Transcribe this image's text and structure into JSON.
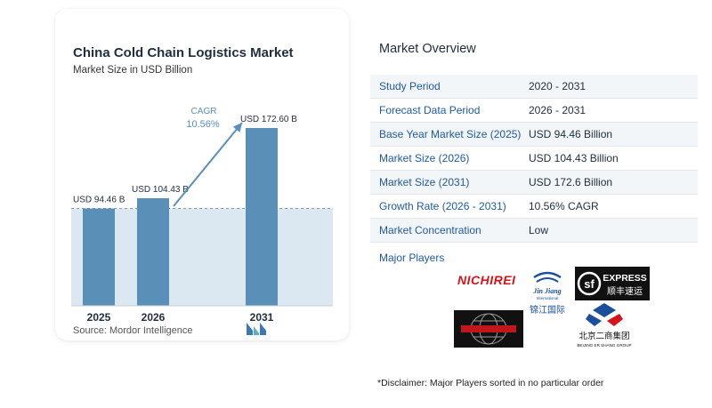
{
  "chart_data": {
    "type": "bar",
    "title": "China Cold Chain Logistics Market",
    "subtitle": "Market Size in USD Billion",
    "categories": [
      "2025",
      "2026",
      "2031"
    ],
    "values": [
      94.46,
      104.43,
      172.6
    ],
    "value_labels": [
      "USD 94.46 B",
      "USD 104.43 B",
      "USD 172.60 B"
    ],
    "cagr_label": "CAGR",
    "cagr_value": "10.56%",
    "ylim": [
      0,
      180
    ],
    "grid": false,
    "colors": {
      "bar": "#5a8fb8",
      "bar_top": "#6a9fc6",
      "shade": "#dbe7f1",
      "arrow": "#5b8fbf",
      "dash": "#8a9aa8"
    }
  },
  "source": "Source:  Mordor Intelligence",
  "overview": {
    "title": "Market Overview",
    "rows": [
      {
        "label": "Study Period",
        "value": "2020 - 2031"
      },
      {
        "label": "Forecast Data Period",
        "value": "2026 - 2031"
      },
      {
        "label": "Base Year Market Size (2025)",
        "value": "USD 94.46 Billion"
      },
      {
        "label": "Market Size (2026)",
        "value": "USD 104.43 Billion"
      },
      {
        "label": "Market Size (2031)",
        "value": "USD 172.6 Billion"
      },
      {
        "label": "Growth Rate (2026 - 2031)",
        "value": "10.56% CAGR"
      },
      {
        "label": "Market Concentration",
        "value": "Low"
      }
    ]
  },
  "major_players": {
    "title": "Major Players",
    "logos": [
      {
        "name": "nichirei-logo",
        "text": "NICHIREI"
      },
      {
        "name": "jinjiang-logo",
        "text": "Jin Jiang",
        "subtext": "International",
        "cn": "锦江国际"
      },
      {
        "name": "sf-express-logo",
        "text": "EXPRESS",
        "cn": "顺丰速运"
      },
      {
        "name": "globe-logo",
        "text": ""
      },
      {
        "name": "beijing-ershang-logo",
        "cn": "北京二商集团",
        "text": "BEIJING ER SHANG GROUP"
      }
    ]
  },
  "disclaimer": "*Disclaimer: Major Players sorted in no particular order"
}
